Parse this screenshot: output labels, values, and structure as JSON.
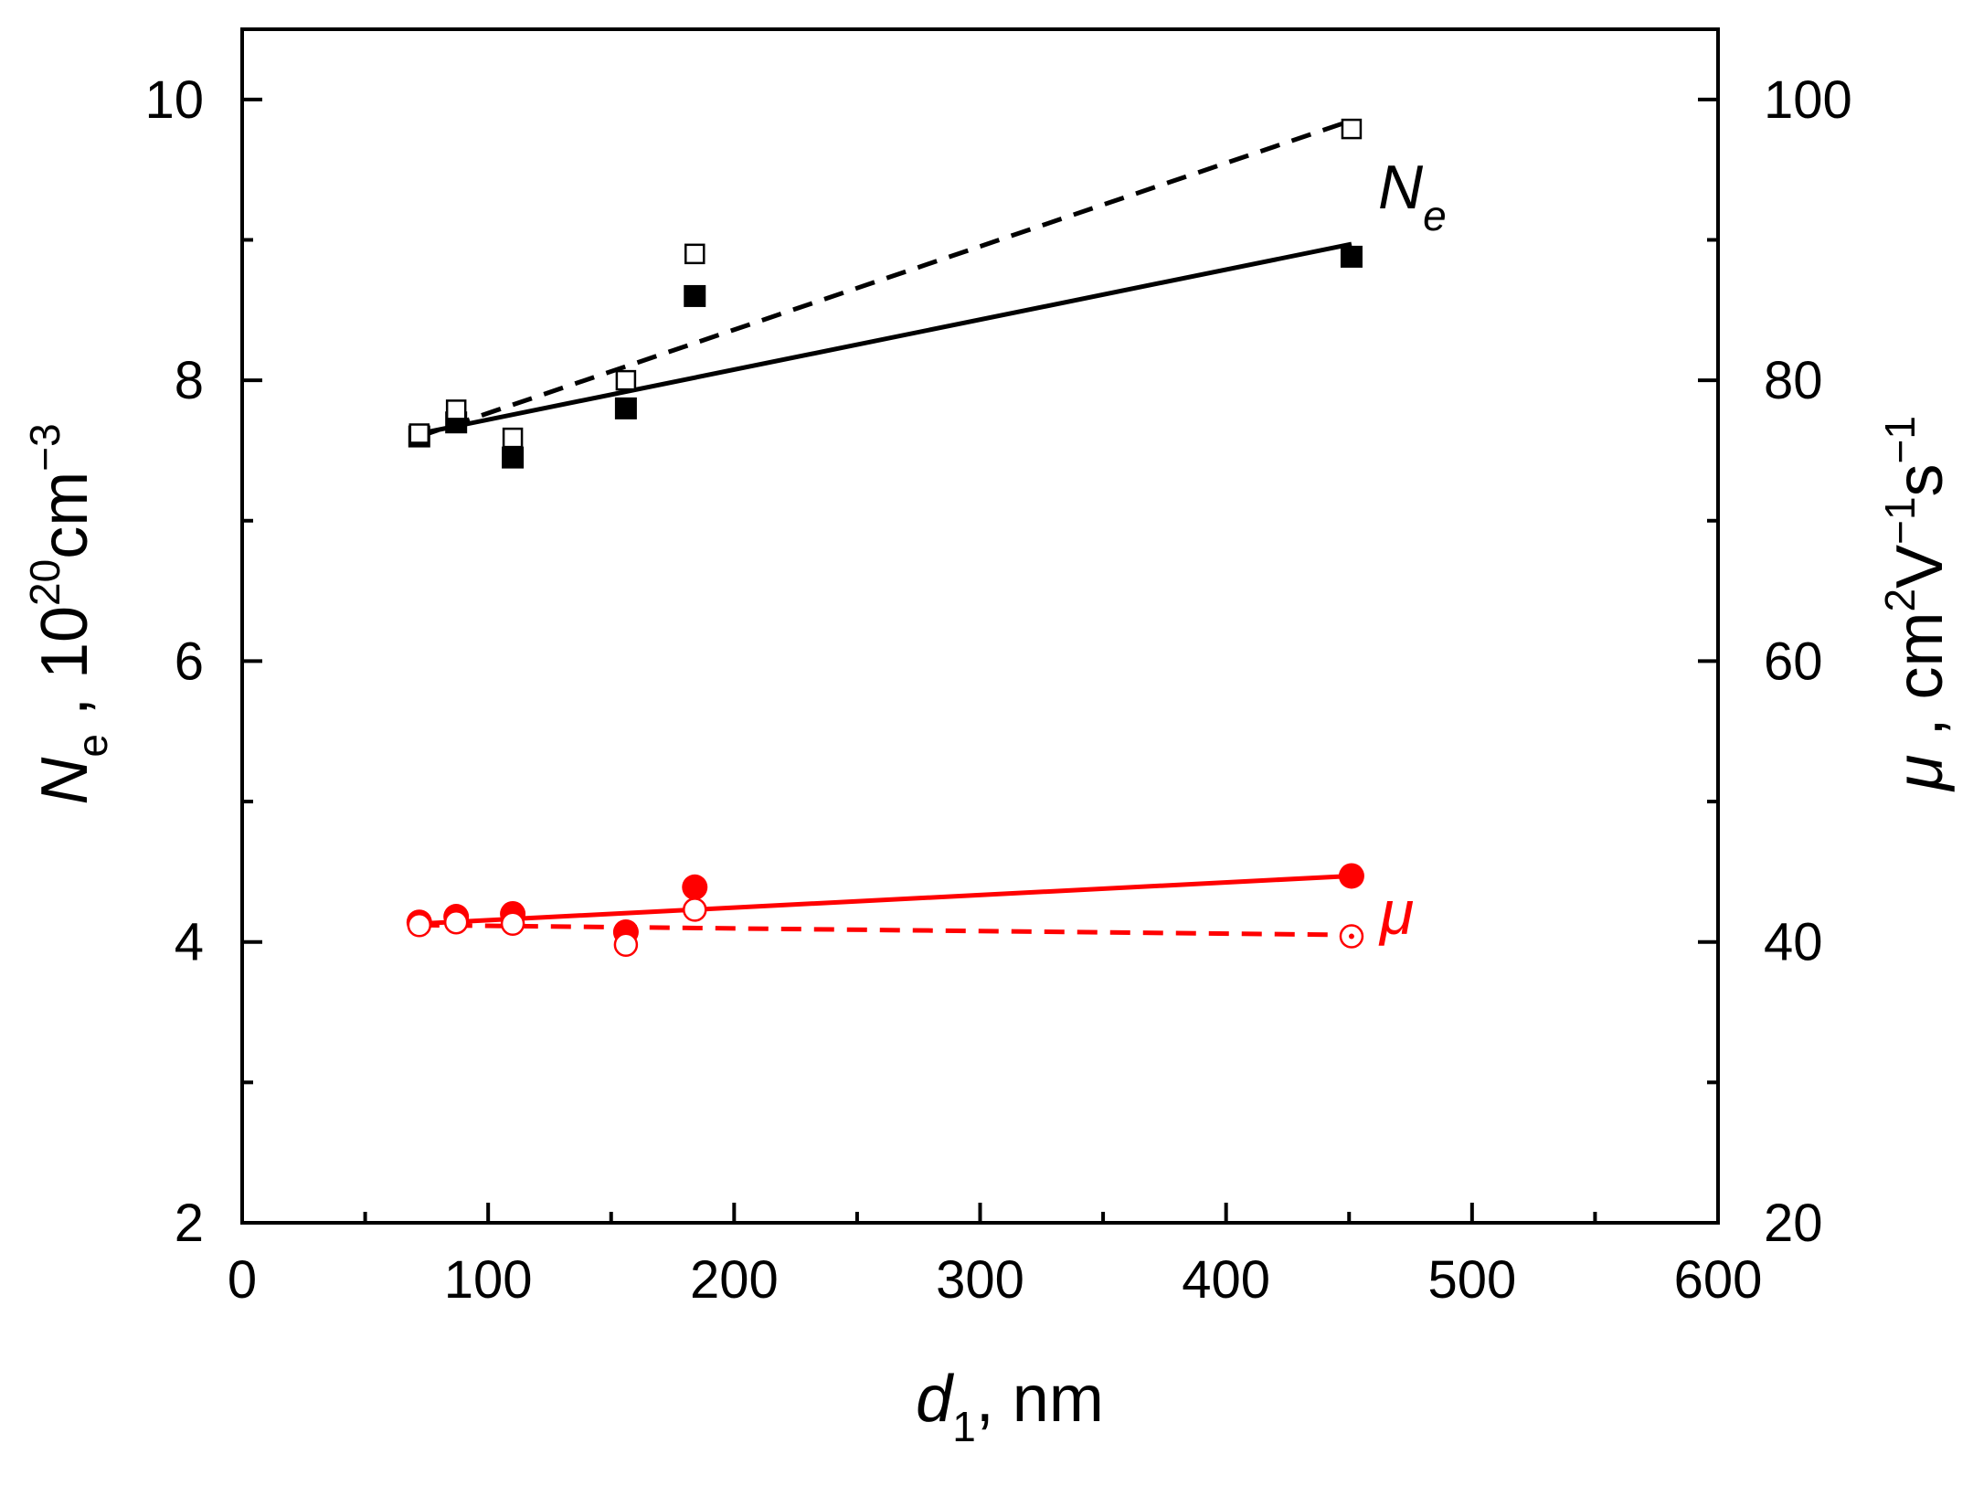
{
  "chart_data": {
    "type": "scatter",
    "x_axis": {
      "label_symbol": "d",
      "label_subscript": "1",
      "label_unit": ", nm",
      "range": [
        0,
        600
      ],
      "ticks": [
        0,
        100,
        200,
        300,
        400,
        500,
        600
      ],
      "tick_labels": [
        "0",
        "100",
        "200",
        "300",
        "400",
        "500",
        "600"
      ],
      "minor_step": 50
    },
    "y_left_axis": {
      "label_symbol": "N",
      "label_subscript": "e",
      "label_sep": " ,  ",
      "label_base": "10",
      "label_exp1": "20",
      "label_mid": "cm",
      "label_exp2": "−3",
      "range": [
        2,
        10.5
      ],
      "ticks": [
        2,
        4,
        6,
        8,
        10
      ],
      "tick_labels": [
        "2",
        "4",
        "6",
        "8",
        "10"
      ],
      "minor_step": 1
    },
    "y_right_axis": {
      "label_symbol": "μ",
      "label_sep": " , ",
      "label_unit1": "cm",
      "label_exp1": "2",
      "label_unit2": "V",
      "label_exp2": "−1",
      "label_unit3": "s",
      "label_exp3": "−1",
      "range": [
        20,
        105
      ],
      "ticks": [
        20,
        40,
        60,
        80,
        100
      ],
      "tick_labels": [
        "20",
        "40",
        "60",
        "80",
        "100"
      ],
      "minor_step": 10
    },
    "series": [
      {
        "name": "Ne filled",
        "axis": "left",
        "marker": "square-filled",
        "color": "#000000",
        "x": [
          72,
          87,
          110,
          156,
          184,
          451
        ],
        "y": [
          7.6,
          7.7,
          7.45,
          7.8,
          8.6,
          8.88
        ],
        "fit": {
          "style": "solid",
          "x": [
            72,
            451
          ],
          "y": [
            7.62,
            8.97
          ]
        }
      },
      {
        "name": "Ne open",
        "axis": "left",
        "marker": "square-open",
        "color": "#000000",
        "x": [
          72,
          87,
          110,
          156,
          184,
          451
        ],
        "y": [
          7.62,
          7.79,
          7.59,
          8.0,
          8.9,
          9.79
        ],
        "fit": {
          "style": "dashed",
          "x": [
            72,
            451
          ],
          "y": [
            7.6,
            9.85
          ]
        }
      },
      {
        "name": "mu filled",
        "axis": "right",
        "marker": "circle-filled",
        "color": "#ff0000",
        "x": [
          72,
          87,
          110,
          156,
          184,
          451
        ],
        "y": [
          41.4,
          41.8,
          42.0,
          40.7,
          43.9,
          44.7
        ],
        "fit": {
          "style": "solid",
          "x": [
            72,
            451
          ],
          "y": [
            41.3,
            44.7
          ]
        }
      },
      {
        "name": "mu open",
        "axis": "right",
        "marker": "circle-open",
        "color": "#ff0000",
        "x": [
          72,
          87,
          110,
          156,
          184,
          451
        ],
        "y": [
          41.2,
          41.4,
          41.3,
          39.8,
          42.3,
          40.4
        ],
        "fit": {
          "style": "dashed",
          "x": [
            72,
            451
          ],
          "y": [
            41.2,
            40.5
          ]
        }
      }
    ],
    "annotations": [
      {
        "symbol": "N",
        "subscript": "e",
        "color": "#000000"
      },
      {
        "symbol": "μ",
        "color": "#ff0000"
      }
    ]
  }
}
